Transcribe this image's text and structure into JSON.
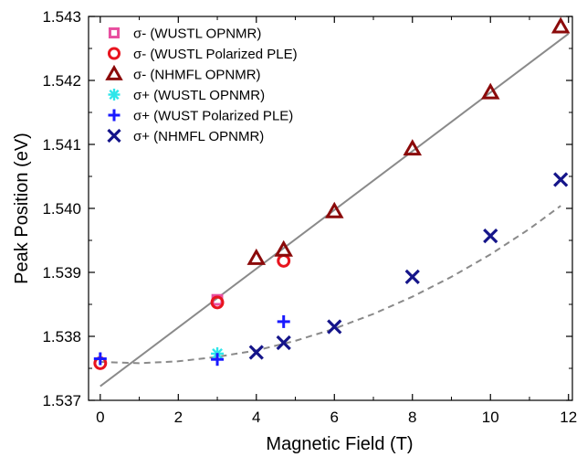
{
  "chart_data": {
    "type": "scatter",
    "title": "",
    "xlabel": "Magnetic Field (T)",
    "ylabel": "Peak Position (eV)",
    "xlim": [
      -0.3,
      12.1
    ],
    "ylim": [
      1.537,
      1.543
    ],
    "x_ticks": [
      0,
      2,
      4,
      6,
      8,
      10,
      12
    ],
    "y_ticks": [
      1.537,
      1.538,
      1.539,
      1.54,
      1.541,
      1.542,
      1.543
    ],
    "x_tick_labels": [
      "0",
      "2",
      "4",
      "6",
      "8",
      "10",
      "12"
    ],
    "y_tick_labels": [
      "1.537",
      "1.538",
      "1.539",
      "1.540",
      "1.541",
      "1.542",
      "1.543"
    ],
    "grid": false,
    "legend_position": "top-left",
    "series": [
      {
        "name": "σ- (WUSTL OPNMR)",
        "marker": "square",
        "color": "#e84fa0",
        "x": [
          3.0
        ],
        "y": [
          1.53857
        ]
      },
      {
        "name": "σ- (WUSTL Polarized PLE)",
        "marker": "circle",
        "color": "#e8141e",
        "x": [
          0.0,
          3.0,
          4.7
        ],
        "y": [
          1.53758,
          1.53853,
          1.53918
        ]
      },
      {
        "name": "σ- (NHMFL OPNMR)",
        "marker": "triangle",
        "color": "#8b0a0a",
        "x": [
          4.0,
          4.7,
          6.0,
          8.0,
          10.0,
          11.8
        ],
        "y": [
          1.53922,
          1.53935,
          1.53995,
          1.54093,
          1.54181,
          1.54284
        ]
      },
      {
        "name": "σ+ (WUSTL OPNMR)",
        "marker": "asterisk",
        "color": "#2ee6ea",
        "x": [
          3.0
        ],
        "y": [
          1.53773
        ]
      },
      {
        "name": "σ+ (WUST Polarized PLE)",
        "marker": "plus",
        "color": "#1a1aff",
        "x": [
          0.0,
          3.0,
          4.7
        ],
        "y": [
          1.53765,
          1.53764,
          1.53823
        ]
      },
      {
        "name": "σ+ (NHMFL OPNMR)",
        "marker": "x",
        "color": "#15158a",
        "x": [
          4.0,
          4.7,
          6.0,
          8.0,
          10.0,
          11.8
        ],
        "y": [
          1.53775,
          1.5379,
          1.53815,
          1.53893,
          1.53957,
          1.54045
        ]
      }
    ],
    "fits": [
      {
        "kind": "linear",
        "style": "solid",
        "color": "#8a8a8a",
        "x": [
          0.0,
          12.0
        ],
        "y": [
          1.53722,
          1.54273
        ]
      },
      {
        "kind": "quadratic",
        "style": "dashed",
        "color": "#8a8a8a",
        "x": [
          0.0,
          1.0,
          2.0,
          3.0,
          4.0,
          5.0,
          6.0,
          7.0,
          8.0,
          9.0,
          10.0,
          11.0,
          11.8
        ],
        "y": [
          1.5376,
          1.53758,
          1.53761,
          1.53768,
          1.53778,
          1.53793,
          1.53812,
          1.53835,
          1.53862,
          1.53893,
          1.53928,
          1.53968,
          1.54004
        ]
      }
    ]
  }
}
